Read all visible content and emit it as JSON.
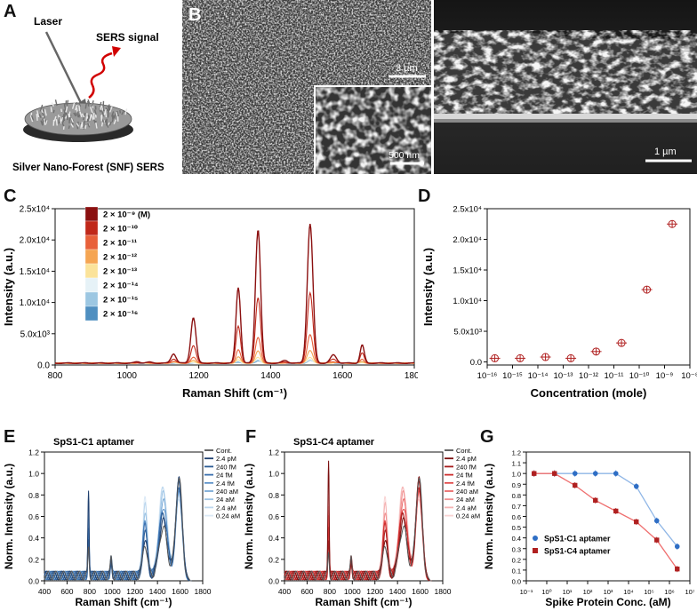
{
  "panel_labels": {
    "a": "A",
    "b": "B",
    "c": "C",
    "d": "D",
    "e": "E",
    "f": "F",
    "g": "G"
  },
  "schematic": {
    "laser_label": "Laser",
    "signal_label": "SERS signal",
    "caption": "Silver Nano-Forest (SNF) SERS"
  },
  "sem": {
    "scale_top": "3 µm",
    "scale_inset": "500 nm",
    "scale_cross": "1 µm"
  },
  "colors": {
    "c_series": [
      "#8b1010",
      "#c0281a",
      "#e8603a",
      "#f5a552",
      "#fbe39a",
      "#e6f2f7",
      "#9cc7e2",
      "#4f8fc0",
      "#23497a"
    ],
    "blue_marker": "#2e6ec5",
    "red_marker": "#b02020"
  },
  "chart_data": [
    {
      "id": "C",
      "type": "line",
      "xlabel": "Raman Shift (cm⁻¹)",
      "ylabel": "Intensity (a.u.)",
      "xlim": [
        800,
        1800
      ],
      "ylim": [
        0,
        25000
      ],
      "x_ticks": [
        "800",
        "1000",
        "1200",
        "1400",
        "1600",
        "1800"
      ],
      "y_ticks": [
        "0.0",
        "5.0x10³",
        "1.0x10⁴",
        "1.5x10⁴",
        "2.0x10⁴",
        "2.5x10⁴"
      ],
      "legend_placement": "top-left",
      "legend": [
        "2 × 10⁻⁹ (M)",
        "2 × 10⁻¹⁰",
        "2 × 10⁻¹¹",
        "2 × 10⁻¹²",
        "2 × 10⁻¹³",
        "2 × 10⁻¹⁴",
        "2 × 10⁻¹⁵",
        "2 × 10⁻¹⁶"
      ],
      "peaks_cm": [
        1130,
        1185,
        1310,
        1365,
        1510,
        1655
      ],
      "series_peak_heights": [
        [
          1500,
          7300,
          12100,
          21400,
          22300,
          2900
        ],
        [
          700,
          2800,
          6000,
          10500,
          11200,
          1600
        ],
        [
          300,
          900,
          2200,
          4100,
          4500,
          600
        ],
        [
          150,
          400,
          1000,
          1900,
          2000,
          300
        ],
        [
          80,
          200,
          500,
          900,
          950,
          150
        ],
        [
          50,
          120,
          300,
          600,
          650,
          100
        ],
        [
          40,
          90,
          250,
          500,
          550,
          90
        ],
        [
          30,
          70,
          200,
          400,
          450,
          80
        ]
      ]
    },
    {
      "id": "D",
      "type": "scatter",
      "xlabel": "Concentration (mole)",
      "ylabel": "Intensity (a.u.)",
      "xscale": "log",
      "xlim": [
        1e-16,
        1e-08
      ],
      "ylim": [
        -500,
        25000
      ],
      "x_ticks": [
        "10⁻¹⁶",
        "10⁻¹⁵",
        "10⁻¹⁴",
        "10⁻¹³",
        "10⁻¹²",
        "10⁻¹¹",
        "10⁻¹⁰",
        "10⁻⁹",
        "10⁻⁸"
      ],
      "y_ticks": [
        "0.0",
        "5.0x10³",
        "1.0x10⁴",
        "1.5x10⁴",
        "2.0x10⁴",
        "2.5x10⁴"
      ],
      "x": [
        2e-16,
        2e-15,
        2e-14,
        2e-13,
        2e-12,
        2e-11,
        2e-10,
        2e-09
      ],
      "y": [
        600,
        600,
        800,
        600,
        1700,
        3100,
        11800,
        22500
      ]
    },
    {
      "id": "E",
      "type": "line",
      "title": "SpS1-C1 aptamer",
      "xlabel": "Raman Shift (cm⁻¹)",
      "ylabel": "Norm. Intensity (a.u.)",
      "xlim": [
        400,
        1800
      ],
      "ylim": [
        0,
        1.2
      ],
      "x_ticks": [
        "400",
        "600",
        "800",
        "1000",
        "1200",
        "1400",
        "1600",
        "1800"
      ],
      "y_ticks": [
        "0.0",
        "0.2",
        "0.4",
        "0.6",
        "0.8",
        "1.0",
        "1.2"
      ],
      "legend": [
        "Cont.",
        "2.4 pM",
        "240 fM",
        "24 fM",
        "2.4 fM",
        "240 aM",
        "24 aM",
        "2.4 aM",
        "0.24 aM"
      ],
      "legend_colors": [
        "#555555",
        "#1f3f6e",
        "#2b5b93",
        "#3a6fae",
        "#5a90c8",
        "#7aaad6",
        "#9cc3e4",
        "#bcd7ee",
        "#dbe9f6"
      ]
    },
    {
      "id": "F",
      "type": "line",
      "title": "SpS1-C4 aptamer",
      "xlabel": "Raman Shift (cm⁻¹)",
      "ylabel": "Norm. Intensity (a.u.)",
      "xlim": [
        400,
        1800
      ],
      "ylim": [
        0,
        1.2
      ],
      "x_ticks": [
        "400",
        "600",
        "800",
        "1000",
        "1200",
        "1400",
        "1600",
        "1800"
      ],
      "y_ticks": [
        "0.0",
        "0.2",
        "0.4",
        "0.6",
        "0.8",
        "1.0",
        "1.2"
      ],
      "legend": [
        "Cont.",
        "2.4 pM",
        "240 fM",
        "24 fM",
        "2.4 fM",
        "240 aM",
        "24 aM",
        "2.4 aM",
        "0.24 aM"
      ],
      "legend_colors": [
        "#555555",
        "#7a0f0f",
        "#a51c1c",
        "#cc2d2d",
        "#e04848",
        "#ea6b6b",
        "#f08f8f",
        "#f5b3b3",
        "#f9d3d3"
      ]
    },
    {
      "id": "G",
      "type": "line",
      "xlabel": "Spike Protein Conc. (aM)",
      "ylabel": "Norm. Intensity (a.u.)",
      "xscale": "log",
      "xlim": [
        0.1,
        10000000.0
      ],
      "ylim": [
        0,
        1.2
      ],
      "x_ticks": [
        "10⁻¹",
        "10⁰",
        "10¹",
        "10²",
        "10³",
        "10⁴",
        "10⁵",
        "10⁶",
        "10⁷"
      ],
      "y_ticks": [
        "0.0",
        "0.1",
        "0.2",
        "0.3",
        "0.4",
        "0.5",
        "0.6",
        "0.7",
        "0.8",
        "0.9",
        "1.0",
        "1.1",
        "1.2"
      ],
      "x": [
        0.24,
        2.4,
        24,
        240,
        2400,
        24000,
        240000,
        2400000
      ],
      "series": [
        {
          "name": "SpS1-C1 aptamer",
          "values": [
            1.0,
            1.0,
            1.0,
            1.0,
            1.0,
            0.88,
            0.56,
            0.32
          ]
        },
        {
          "name": "SpS1-C4 aptamer",
          "values": [
            1.0,
            1.0,
            0.89,
            0.75,
            0.65,
            0.55,
            0.38,
            0.11
          ]
        }
      ]
    }
  ]
}
